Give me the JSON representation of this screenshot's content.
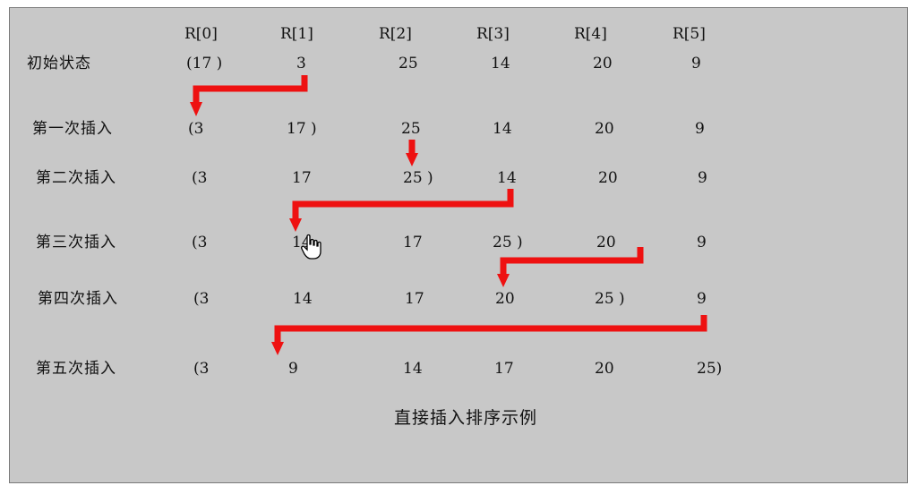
{
  "headers": [
    "R[0]",
    "R[1]",
    "R[2]",
    "R[3]",
    "R[4]",
    "R[5]"
  ],
  "rows": [
    {
      "label": "初始状态",
      "cells": [
        "(17 )",
        "3",
        "25",
        "14",
        "20",
        "9"
      ]
    },
    {
      "label": "第一次插入",
      "cells": [
        "(3",
        "17 )",
        "25",
        "14",
        "20",
        "9"
      ]
    },
    {
      "label": "第二次插入",
      "cells": [
        "(3",
        "17",
        "25 )",
        "14",
        "20",
        "9"
      ]
    },
    {
      "label": "第三次插入",
      "cells": [
        "(3",
        "14",
        "17",
        "25 )",
        "20",
        "9"
      ]
    },
    {
      "label": "第四次插入",
      "cells": [
        "(3",
        "14",
        "17",
        "20",
        "25 )",
        "9"
      ]
    },
    {
      "label": "第五次插入",
      "cells": [
        "(3",
        "9",
        "14",
        "17",
        "20",
        "25)"
      ]
    }
  ],
  "caption": "直接插入排序示例",
  "arrow_color": "#ee1111",
  "cursor_icon": "hand-pointer-icon"
}
